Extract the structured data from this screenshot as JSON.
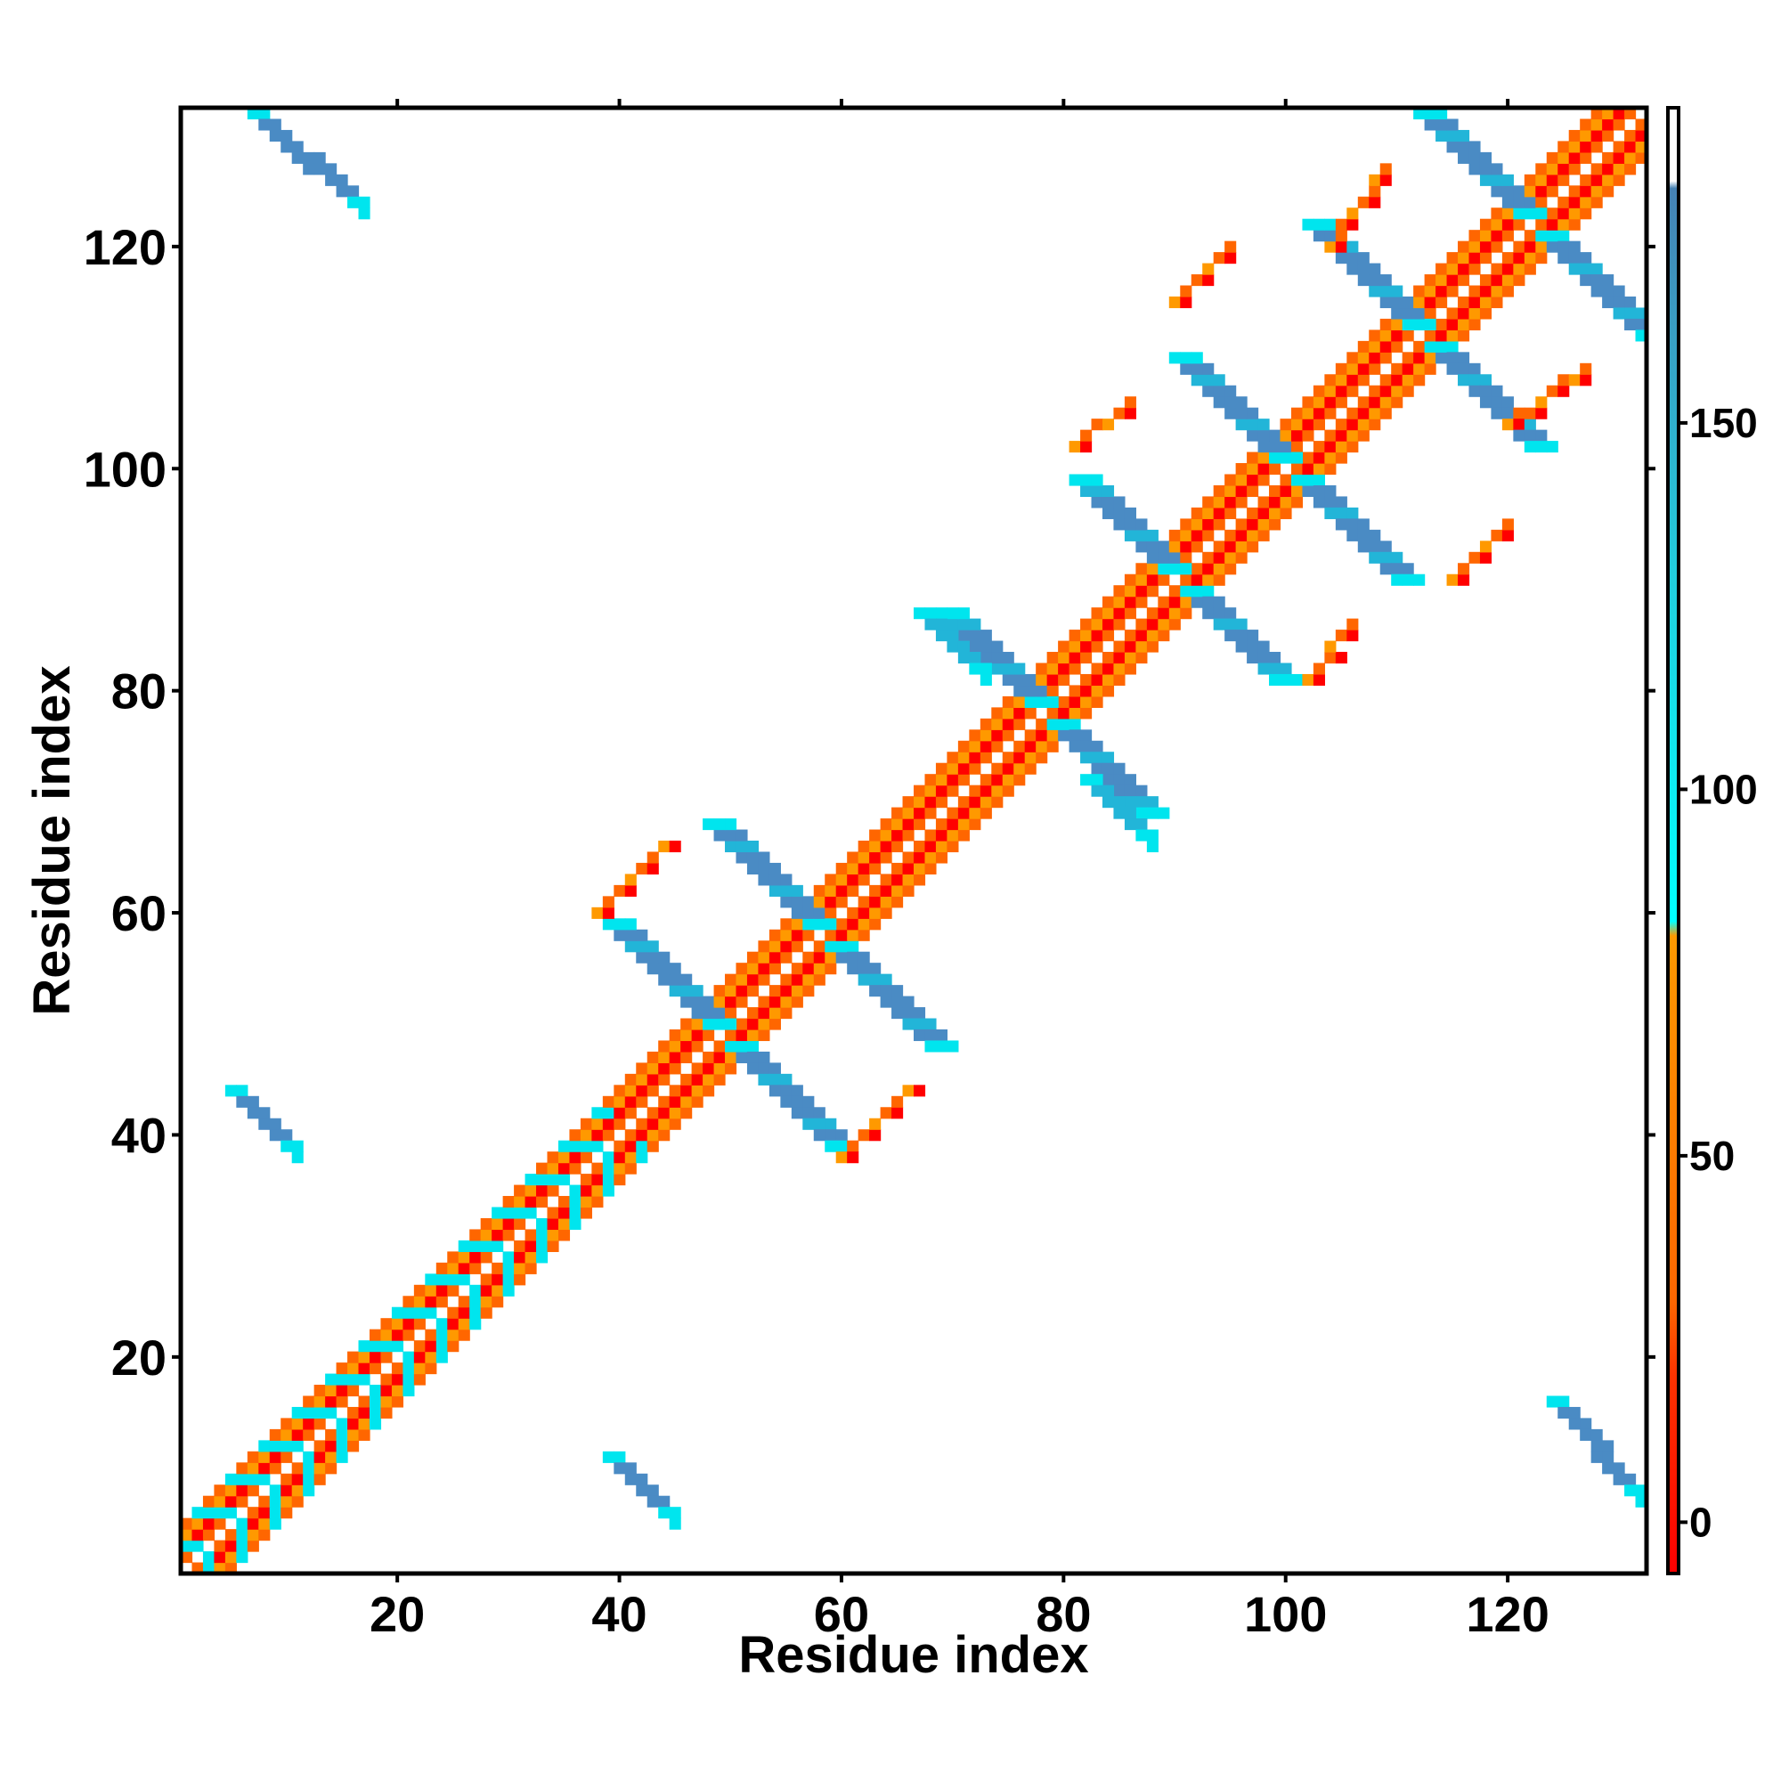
{
  "chart_data": {
    "type": "heatmap",
    "title": "",
    "xlabel": "Residue index",
    "ylabel": "Residue index",
    "xlim": [
      0.5,
      132.5
    ],
    "ylim": [
      0.5,
      132.5
    ],
    "x_ticks": [
      20,
      40,
      60,
      80,
      100,
      120
    ],
    "y_ticks": [
      20,
      40,
      60,
      80,
      100,
      120
    ],
    "x_tick_labels": [
      "20",
      "40",
      "60",
      "80",
      "100",
      "120"
    ],
    "y_tick_labels": [
      "20",
      "40",
      "60",
      "80",
      "100",
      "120"
    ],
    "colorbar": {
      "range": [
        -7,
        193
      ],
      "ticks": [
        0,
        50,
        100,
        150
      ],
      "tick_labels": [
        "0",
        "50",
        "100",
        "150"
      ],
      "stops": [
        {
          "value": -7,
          "color": "#ff0000"
        },
        {
          "value": 20,
          "color": "#ff3300"
        },
        {
          "value": 30,
          "color": "#ff6600"
        },
        {
          "value": 80,
          "color": "#ff9900"
        },
        {
          "value": 82,
          "color": "#00ffff"
        },
        {
          "value": 130,
          "color": "#22ccdd"
        },
        {
          "value": 182,
          "color": "#4682b4"
        },
        {
          "value": 183,
          "color": "#ffffff"
        },
        {
          "value": 193,
          "color": "#ffffff"
        }
      ]
    },
    "categories": {
      "near_diagonal": {
        "color": "#ff0000",
        "approx_value": 5
      },
      "short_range": {
        "color": "#ff6600",
        "approx_value": 45
      },
      "medium_range": {
        "color": "#ff9900",
        "approx_value": 70
      },
      "strand_edge": {
        "color": "#00e5ee",
        "approx_value": 95
      },
      "strand_mid": {
        "color": "#22b5d8",
        "approx_value": 120
      },
      "strand_core": {
        "color": "#4a8bc4",
        "approx_value": 165
      }
    },
    "features": {
      "diagonal": {
        "from": 1,
        "to": 132,
        "bands": [
          {
            "offset": 1,
            "category": "short_range"
          },
          {
            "offset": 2,
            "category": "near_diagonal"
          },
          {
            "offset": 3,
            "category": "medium_range"
          },
          {
            "offset": 4,
            "category": "short_range"
          }
        ]
      },
      "antidiagonal_strands": [
        {
          "center": [
            48.5,
            48.5
          ],
          "half_length": 10,
          "width": 2
        },
        {
          "center": [
            57.5,
            57.5
          ],
          "half_length": 10,
          "width": 2
        },
        {
          "center": [
            77.5,
            77.5
          ],
          "half_length": 9,
          "width": 2
        },
        {
          "center": [
            89.5,
            89.5
          ],
          "half_length": 9,
          "width": 2
        },
        {
          "center": [
            99.5,
            99.5
          ],
          "half_length": 10,
          "width": 2
        },
        {
          "center": [
            111.5,
            111.5
          ],
          "half_length": 10,
          "width": 2
        },
        {
          "center": [
            121.5,
            121.5
          ],
          "half_length": 10,
          "width": 2
        }
      ],
      "parallel_strands": [
        {
          "start": [
            5,
            44
          ],
          "end": [
            10,
            39
          ],
          "category": "strand_core"
        },
        {
          "start": [
            39,
            11
          ],
          "end": [
            44,
            6
          ],
          "category": "strand_core"
        },
        {
          "start": [
            7,
            132
          ],
          "end": [
            16,
            124
          ],
          "category": "strand_core"
        },
        {
          "start": [
            124,
            16
          ],
          "end": [
            131,
            8
          ],
          "category": "strand_core"
        },
        {
          "start": [
            67,
            87
          ],
          "end": [
            72,
            82
          ],
          "category": "strand_mid"
        },
        {
          "start": [
            82,
            72
          ],
          "end": [
            87,
            67
          ],
          "category": "strand_mid"
        }
      ],
      "orange_arcs": [
        {
          "start": [
            38,
            60
          ],
          "end": [
            44,
            66
          ],
          "category": "short_range"
        },
        {
          "start": [
            60,
            38
          ],
          "end": [
            66,
            44
          ],
          "category": "short_range"
        },
        {
          "start": [
            81,
            102
          ],
          "end": [
            86,
            106
          ],
          "category": "short_range"
        },
        {
          "start": [
            102,
            81
          ],
          "end": [
            106,
            86
          ],
          "category": "short_range"
        },
        {
          "start": [
            104,
            120
          ],
          "end": [
            109,
            127
          ],
          "category": "short_range"
        },
        {
          "start": [
            120,
            104
          ],
          "end": [
            127,
            109
          ],
          "category": "short_range"
        },
        {
          "start": [
            90,
            115
          ],
          "end": [
            95,
            120
          ],
          "category": "short_range"
        },
        {
          "start": [
            115,
            90
          ],
          "end": [
            120,
            95
          ],
          "category": "short_range"
        }
      ]
    }
  }
}
